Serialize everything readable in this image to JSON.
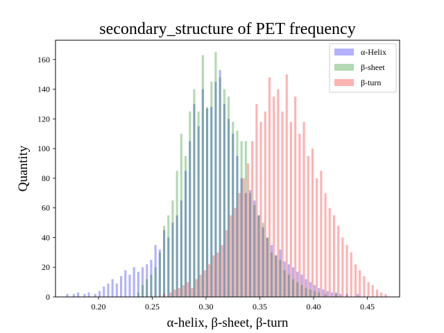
{
  "chart_data": {
    "type": "histogram",
    "title": "secondary_structure of PET frequency",
    "xlabel": "α-helix, β-sheet, β-turn",
    "ylabel": "Quantity",
    "xlim": [
      0.16,
      0.48
    ],
    "ylim": [
      0,
      173
    ],
    "xticks": [
      0.2,
      0.25,
      0.3,
      0.35,
      0.4,
      0.45
    ],
    "xtick_labels": [
      "0.20",
      "0.25",
      "0.30",
      "0.35",
      "0.40",
      "0.45"
    ],
    "yticks": [
      0,
      20,
      40,
      60,
      80,
      100,
      120,
      140,
      160
    ],
    "ytick_labels": [
      "0",
      "20",
      "40",
      "60",
      "80",
      "100",
      "120",
      "140",
      "160"
    ],
    "grid": false,
    "legend_position": "top-right",
    "bin_width": 0.002,
    "bar_opacity": 0.3,
    "series": [
      {
        "name": "α-Helix",
        "color": "#0000ff",
        "bins": [
          [
            0.17,
            2
          ],
          [
            0.176,
            2
          ],
          [
            0.18,
            3
          ],
          [
            0.186,
            2
          ],
          [
            0.19,
            3
          ],
          [
            0.196,
            2
          ],
          [
            0.2,
            4
          ],
          [
            0.204,
            7
          ],
          [
            0.208,
            9
          ],
          [
            0.212,
            12
          ],
          [
            0.216,
            9
          ],
          [
            0.22,
            14
          ],
          [
            0.224,
            18
          ],
          [
            0.228,
            15
          ],
          [
            0.232,
            20
          ],
          [
            0.236,
            17
          ],
          [
            0.24,
            20
          ],
          [
            0.244,
            22
          ],
          [
            0.248,
            25
          ],
          [
            0.252,
            35
          ],
          [
            0.256,
            32
          ],
          [
            0.26,
            45
          ],
          [
            0.264,
            40
          ],
          [
            0.268,
            50
          ],
          [
            0.272,
            55
          ],
          [
            0.276,
            65
          ],
          [
            0.28,
            85
          ],
          [
            0.284,
            105
          ],
          [
            0.288,
            130
          ],
          [
            0.292,
            115
          ],
          [
            0.296,
            140
          ],
          [
            0.3,
            127
          ],
          [
            0.304,
            128
          ],
          [
            0.308,
            145
          ],
          [
            0.312,
            153
          ],
          [
            0.316,
            130
          ],
          [
            0.32,
            120
          ],
          [
            0.324,
            110
          ],
          [
            0.328,
            95
          ],
          [
            0.332,
            80
          ],
          [
            0.336,
            70
          ],
          [
            0.34,
            72
          ],
          [
            0.344,
            65
          ],
          [
            0.348,
            55
          ],
          [
            0.352,
            47
          ],
          [
            0.356,
            40
          ],
          [
            0.36,
            35
          ],
          [
            0.364,
            28
          ],
          [
            0.368,
            32
          ],
          [
            0.372,
            24
          ],
          [
            0.376,
            22
          ],
          [
            0.38,
            20
          ],
          [
            0.384,
            17
          ],
          [
            0.388,
            15
          ],
          [
            0.392,
            12
          ],
          [
            0.396,
            10
          ],
          [
            0.4,
            8
          ],
          [
            0.404,
            6
          ],
          [
            0.408,
            5
          ],
          [
            0.412,
            4
          ],
          [
            0.416,
            3
          ],
          [
            0.42,
            3
          ],
          [
            0.424,
            2
          ],
          [
            0.43,
            2
          ],
          [
            0.44,
            2
          ]
        ]
      },
      {
        "name": "β-sheet",
        "color": "#008000",
        "bins": [
          [
            0.236,
            3
          ],
          [
            0.24,
            8
          ],
          [
            0.244,
            12
          ],
          [
            0.248,
            15
          ],
          [
            0.252,
            20
          ],
          [
            0.256,
            30
          ],
          [
            0.26,
            48
          ],
          [
            0.264,
            55
          ],
          [
            0.268,
            65
          ],
          [
            0.272,
            85
          ],
          [
            0.276,
            110
          ],
          [
            0.28,
            95
          ],
          [
            0.284,
            125
          ],
          [
            0.288,
            140
          ],
          [
            0.292,
            125
          ],
          [
            0.296,
            163
          ],
          [
            0.3,
            128
          ],
          [
            0.304,
            145
          ],
          [
            0.308,
            165
          ],
          [
            0.312,
            148
          ],
          [
            0.316,
            140
          ],
          [
            0.32,
            135
          ],
          [
            0.324,
            118
          ],
          [
            0.328,
            112
          ],
          [
            0.332,
            105
          ],
          [
            0.336,
            105
          ],
          [
            0.34,
            70
          ],
          [
            0.344,
            62
          ],
          [
            0.348,
            55
          ],
          [
            0.352,
            50
          ],
          [
            0.356,
            40
          ],
          [
            0.36,
            30
          ],
          [
            0.364,
            28
          ],
          [
            0.368,
            25
          ],
          [
            0.372,
            18
          ],
          [
            0.376,
            15
          ],
          [
            0.38,
            12
          ],
          [
            0.384,
            10
          ],
          [
            0.388,
            8
          ],
          [
            0.392,
            6
          ],
          [
            0.396,
            5
          ],
          [
            0.4,
            4
          ],
          [
            0.404,
            3
          ],
          [
            0.41,
            2
          ],
          [
            0.42,
            2
          ]
        ]
      },
      {
        "name": "β-turn",
        "color": "#ff0000",
        "bins": [
          [
            0.26,
            2
          ],
          [
            0.266,
            3
          ],
          [
            0.27,
            5
          ],
          [
            0.274,
            6
          ],
          [
            0.278,
            8
          ],
          [
            0.282,
            10
          ],
          [
            0.286,
            6
          ],
          [
            0.29,
            12
          ],
          [
            0.294,
            15
          ],
          [
            0.298,
            18
          ],
          [
            0.302,
            22
          ],
          [
            0.306,
            28
          ],
          [
            0.31,
            30
          ],
          [
            0.314,
            35
          ],
          [
            0.318,
            45
          ],
          [
            0.322,
            55
          ],
          [
            0.326,
            60
          ],
          [
            0.33,
            70
          ],
          [
            0.334,
            80
          ],
          [
            0.338,
            90
          ],
          [
            0.342,
            105
          ],
          [
            0.346,
            130
          ],
          [
            0.35,
            118
          ],
          [
            0.354,
            125
          ],
          [
            0.358,
            148
          ],
          [
            0.362,
            135
          ],
          [
            0.366,
            140
          ],
          [
            0.37,
            125
          ],
          [
            0.374,
            150
          ],
          [
            0.378,
            118
          ],
          [
            0.382,
            135
          ],
          [
            0.386,
            110
          ],
          [
            0.39,
            118
          ],
          [
            0.394,
            95
          ],
          [
            0.398,
            100
          ],
          [
            0.402,
            80
          ],
          [
            0.406,
            85
          ],
          [
            0.41,
            70
          ],
          [
            0.414,
            60
          ],
          [
            0.418,
            55
          ],
          [
            0.422,
            48
          ],
          [
            0.426,
            40
          ],
          [
            0.43,
            35
          ],
          [
            0.434,
            30
          ],
          [
            0.438,
            22
          ],
          [
            0.442,
            18
          ],
          [
            0.446,
            14
          ],
          [
            0.45,
            10
          ],
          [
            0.454,
            8
          ],
          [
            0.458,
            5
          ],
          [
            0.462,
            3
          ],
          [
            0.466,
            2
          ]
        ]
      }
    ]
  }
}
